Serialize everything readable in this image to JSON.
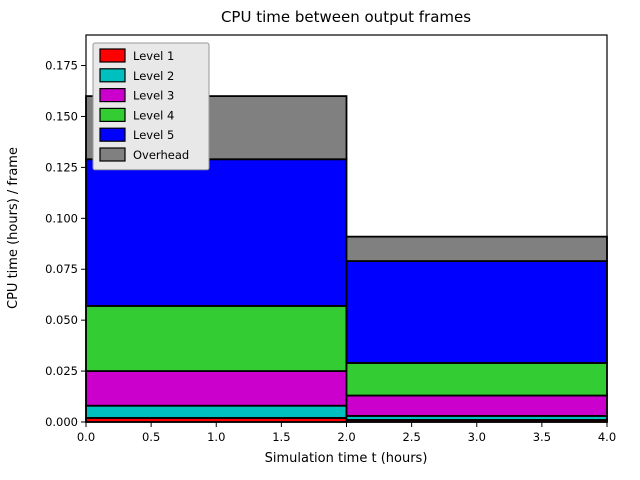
{
  "chart_data": {
    "type": "bar",
    "stacked": true,
    "title": "CPU time between output frames",
    "xlabel": "Simulation time t (hours)",
    "ylabel": "CPU time (hours) / frame",
    "xlim": [
      0,
      4
    ],
    "ylim": [
      0,
      0.19
    ],
    "grid": false,
    "legend_position": "upper left",
    "bins": [
      [
        0,
        2
      ],
      [
        2,
        4
      ]
    ],
    "series": [
      {
        "name": "Level 1",
        "color": "#ff0000",
        "values": [
          0.002,
          0.001
        ]
      },
      {
        "name": "Level 2",
        "color": "#00bfbf",
        "values": [
          0.006,
          0.002
        ]
      },
      {
        "name": "Level 3",
        "color": "#cc00cc",
        "values": [
          0.017,
          0.01
        ]
      },
      {
        "name": "Level 4",
        "color": "#33cc33",
        "values": [
          0.032,
          0.016
        ]
      },
      {
        "name": "Level 5",
        "color": "#0000ff",
        "values": [
          0.072,
          0.05
        ]
      },
      {
        "name": "Overhead",
        "color": "#808080",
        "values": [
          0.031,
          0.012
        ]
      }
    ],
    "bar_totals": [
      0.16,
      0.091
    ],
    "edge_color": "#000000",
    "xticks": {
      "values": [
        0,
        0.5,
        1,
        1.5,
        2,
        2.5,
        3,
        3.5,
        4
      ],
      "labels": [
        "0.0",
        "0.5",
        "1.0",
        "1.5",
        "2.0",
        "2.5",
        "3.0",
        "3.5",
        "4.0"
      ]
    },
    "yticks": {
      "values": [
        0,
        0.025,
        0.05,
        0.075,
        0.1,
        0.125,
        0.15,
        0.175
      ],
      "labels": [
        "0.000",
        "0.025",
        "0.050",
        "0.075",
        "0.100",
        "0.125",
        "0.150",
        "0.175"
      ]
    }
  }
}
